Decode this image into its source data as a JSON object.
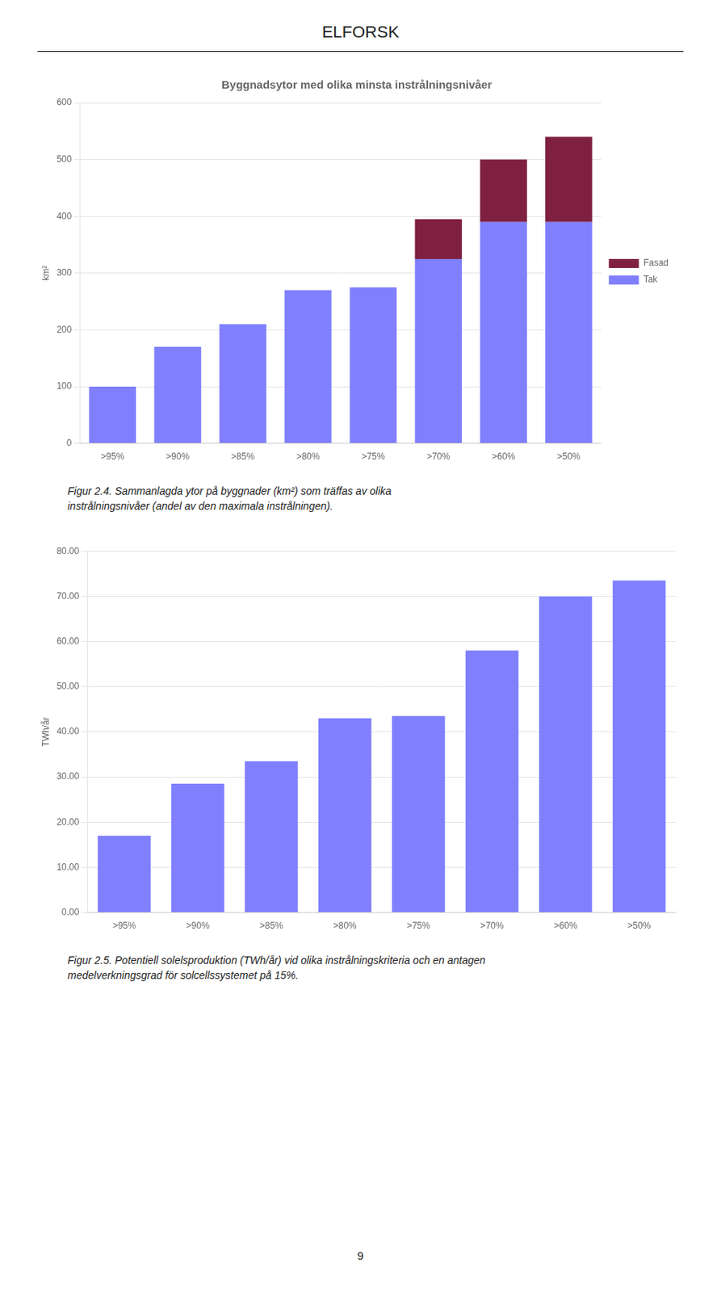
{
  "title": "ELFORSK",
  "chart_data": [
    {
      "type": "bar",
      "title": "Byggnadsytor med olika minsta instrålningsnivåer",
      "categories": [
        ">95%",
        ">90%",
        ">85%",
        ">80%",
        ">75%",
        ">70%",
        ">60%",
        ">50%"
      ],
      "series": [
        {
          "name": "Tak",
          "color": "#8080FF",
          "values": [
            100,
            170,
            210,
            270,
            275,
            325,
            390,
            390
          ]
        },
        {
          "name": "Fasad",
          "color": "#802040",
          "values": [
            0,
            0,
            0,
            0,
            0,
            70,
            110,
            150
          ]
        }
      ],
      "stacked": true,
      "y_label": "km²",
      "ylim": [
        0,
        600
      ],
      "yticks": [
        0,
        100,
        200,
        300,
        400,
        500,
        600
      ],
      "grid": true,
      "legend": "right",
      "caption": "Figur 2.4.  Sammanlagda ytor på byggnader (km²) som träffas av olika\ninstrålningsnivåer (andel av den maximala instrålningen)."
    },
    {
      "type": "bar",
      "categories": [
        ">95%",
        ">90%",
        ">85%",
        ">80%",
        ">75%",
        ">70%",
        ">60%",
        ">50%"
      ],
      "values": [
        17,
        28.5,
        33.5,
        43,
        43.5,
        58,
        70,
        73.5
      ],
      "color": "#8080FF",
      "y_label": "TWh/år",
      "ylim": [
        0,
        80
      ],
      "yticks": [
        {
          "value": 0,
          "label": "0.00"
        },
        {
          "value": 10,
          "label": "10.00"
        },
        {
          "value": 20,
          "label": "20.00"
        },
        {
          "value": 30,
          "label": "30.00"
        },
        {
          "value": 40,
          "label": "40.00"
        },
        {
          "value": 50,
          "label": "50.00"
        },
        {
          "value": 60,
          "label": "60.00"
        },
        {
          "value": 70,
          "label": "70.00"
        },
        {
          "value": 80,
          "label": "80.00"
        }
      ],
      "grid": true,
      "caption": "Figur 2.5.  Potentiell solelsproduktion (TWh/år) vid olika instrålningskriteria och en antagen\nmedelverkningsgrad för solcellssystemet på 15%."
    }
  ],
  "page_number": "9"
}
